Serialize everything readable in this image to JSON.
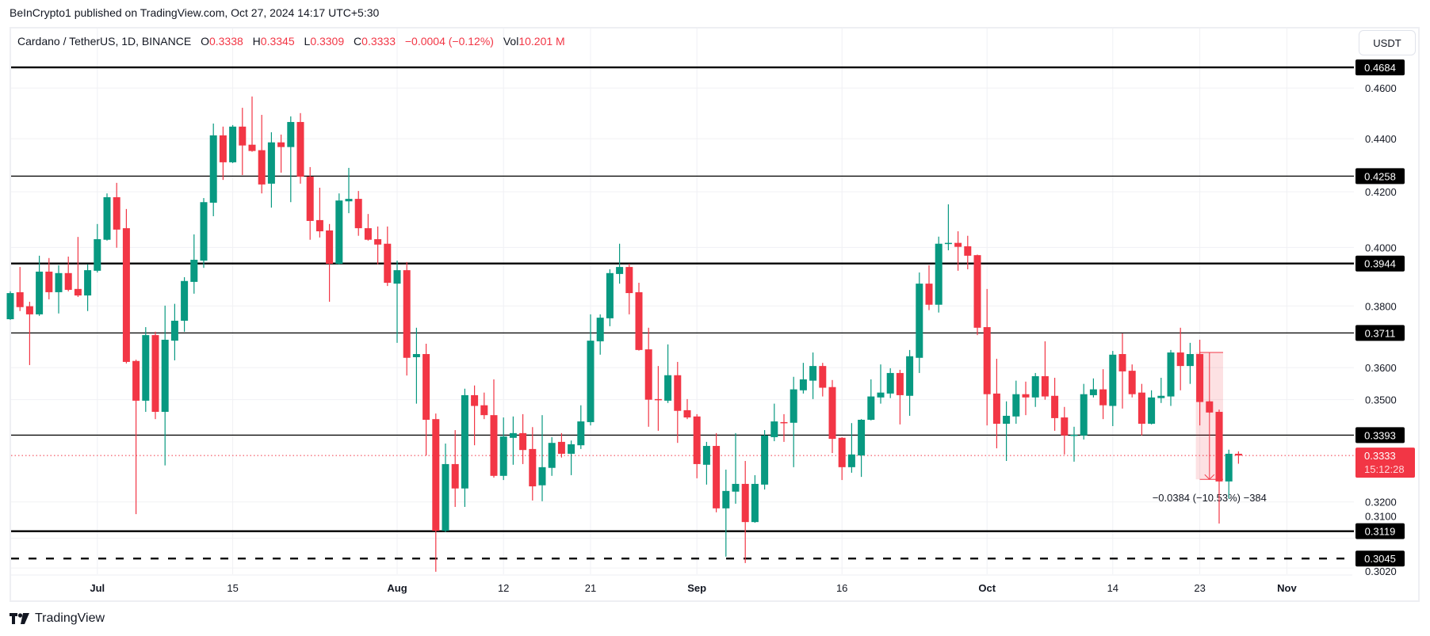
{
  "header": {
    "published": "BeInCrypto1 published on TradingView.com, Oct 27, 2024 14:17 UTC+5:30"
  },
  "legend": {
    "symbol": "Cardano / TetherUS, 1D, BINANCE",
    "o_label": "O",
    "o": "0.3338",
    "h_label": "H",
    "h": "0.3345",
    "l_label": "L",
    "l": "0.3309",
    "c_label": "C",
    "c": "0.3333",
    "change": "−0.0004 (−0.12%)",
    "vol_label": "Vol",
    "vol": "10.201 M"
  },
  "currency_button": "USDT",
  "footer": {
    "brand": "TradingView",
    "logo_icon": "tradingview-logo-icon"
  },
  "colors": {
    "up": "#089981",
    "down": "#f23645",
    "level": "#000000",
    "last_price": "#f23645"
  },
  "chart_data": {
    "type": "candlestick",
    "scale": "log",
    "grid": true,
    "ylim": [
      0.2985,
      0.4755
    ],
    "xlim": [
      "2024-06-22",
      "2024-11-04"
    ],
    "y_ticks": [
      "0.4600",
      "0.4400",
      "0.4200",
      "0.4000",
      "0.3800",
      "0.3600",
      "0.3500",
      "0.3200",
      "0.3100",
      "0.3020"
    ],
    "x_ticks": [
      {
        "date": "2024-07-01",
        "label": "Jul",
        "major": true
      },
      {
        "date": "2024-07-15",
        "label": "15",
        "major": false
      },
      {
        "date": "2024-08-01",
        "label": "Aug",
        "major": true
      },
      {
        "date": "2024-08-12",
        "label": "12",
        "major": false
      },
      {
        "date": "2024-08-21",
        "label": "21",
        "major": false
      },
      {
        "date": "2024-09-01",
        "label": "Sep",
        "major": true
      },
      {
        "date": "2024-09-16",
        "label": "16",
        "major": false
      },
      {
        "date": "2024-10-01",
        "label": "Oct",
        "major": true
      },
      {
        "date": "2024-10-14",
        "label": "14",
        "major": false
      },
      {
        "date": "2024-10-23",
        "label": "23",
        "major": false
      },
      {
        "date": "2024-11-01",
        "label": "Nov",
        "major": true
      }
    ],
    "levels": [
      {
        "price": 0.4684,
        "label": "0.4684",
        "style": "solid-thick"
      },
      {
        "price": 0.4258,
        "label": "0.4258",
        "style": "solid"
      },
      {
        "price": 0.3944,
        "label": "0.3944",
        "style": "solid-thick"
      },
      {
        "price": 0.3711,
        "label": "0.3711",
        "style": "solid"
      },
      {
        "price": 0.3393,
        "label": "0.3393",
        "style": "solid"
      },
      {
        "price": 0.3119,
        "label": "0.3119",
        "style": "solid-thick"
      },
      {
        "price": 0.3045,
        "label": "0.3045",
        "style": "dashed"
      }
    ],
    "last_price": {
      "price": 0.3333,
      "label": "0.3333",
      "countdown": "15:12:28"
    },
    "measurement": {
      "from_date": "2024-10-23",
      "to_date": "2024-10-25",
      "from_price": 0.3648,
      "to_price": 0.3264,
      "label": "−0.0384 (−10.53%) −384"
    },
    "columns": [
      "date",
      "open",
      "high",
      "low",
      "close"
    ],
    "candles": [
      [
        "2024-06-22",
        0.3756,
        0.3849,
        0.3754,
        0.3843
      ],
      [
        "2024-06-23",
        0.3846,
        0.3932,
        0.3783,
        0.3796
      ],
      [
        "2024-06-24",
        0.3799,
        0.3814,
        0.3608,
        0.3772
      ],
      [
        "2024-06-25",
        0.3772,
        0.3971,
        0.3767,
        0.3916
      ],
      [
        "2024-06-26",
        0.3916,
        0.3963,
        0.3822,
        0.3846
      ],
      [
        "2024-06-27",
        0.3846,
        0.3938,
        0.3775,
        0.3911
      ],
      [
        "2024-06-28",
        0.3911,
        0.3968,
        0.3849,
        0.3854
      ],
      [
        "2024-06-29",
        0.3857,
        0.4037,
        0.383,
        0.3835
      ],
      [
        "2024-06-30",
        0.3835,
        0.3941,
        0.3783,
        0.3921
      ],
      [
        "2024-07-01",
        0.3919,
        0.4083,
        0.3913,
        0.4029
      ],
      [
        "2024-07-02",
        0.4027,
        0.4194,
        0.4024,
        0.418
      ],
      [
        "2024-07-03",
        0.418,
        0.4233,
        0.3999,
        0.4063
      ],
      [
        "2024-07-04",
        0.4068,
        0.4137,
        0.3613,
        0.3618
      ],
      [
        "2024-07-05",
        0.3621,
        0.3625,
        0.3166,
        0.3497
      ],
      [
        "2024-07-06",
        0.3497,
        0.373,
        0.3463,
        0.3704
      ],
      [
        "2024-07-07",
        0.3704,
        0.3715,
        0.3441,
        0.3463
      ],
      [
        "2024-07-08",
        0.3463,
        0.3801,
        0.3304,
        0.3689
      ],
      [
        "2024-07-09",
        0.3686,
        0.3807,
        0.3623,
        0.3751
      ],
      [
        "2024-07-10",
        0.3751,
        0.3897,
        0.3715,
        0.3884
      ],
      [
        "2024-07-11",
        0.3881,
        0.4046,
        0.3841,
        0.3957
      ],
      [
        "2024-07-12",
        0.3954,
        0.4177,
        0.3929,
        0.4162
      ],
      [
        "2024-07-13",
        0.416,
        0.4459,
        0.4111,
        0.4413
      ],
      [
        "2024-07-14",
        0.4413,
        0.4447,
        0.4244,
        0.431
      ],
      [
        "2024-07-15",
        0.431,
        0.4453,
        0.4307,
        0.4447
      ],
      [
        "2024-07-16",
        0.4447,
        0.4521,
        0.4262,
        0.4374
      ],
      [
        "2024-07-17",
        0.4377,
        0.4566,
        0.435,
        0.4353
      ],
      [
        "2024-07-18",
        0.4356,
        0.4493,
        0.4194,
        0.4227
      ],
      [
        "2024-07-19",
        0.423,
        0.4425,
        0.4142,
        0.4386
      ],
      [
        "2024-07-20",
        0.4386,
        0.4416,
        0.4271,
        0.4368
      ],
      [
        "2024-07-21",
        0.4368,
        0.4487,
        0.4162,
        0.4465
      ],
      [
        "2024-07-22",
        0.4465,
        0.45,
        0.423,
        0.4256
      ],
      [
        "2024-07-23",
        0.4256,
        0.4292,
        0.4027,
        0.4094
      ],
      [
        "2024-07-24",
        0.4097,
        0.4215,
        0.4035,
        0.4057
      ],
      [
        "2024-07-25",
        0.406,
        0.4083,
        0.3814,
        0.3943
      ],
      [
        "2024-07-26",
        0.3943,
        0.4194,
        0.394,
        0.4168
      ],
      [
        "2024-07-27",
        0.4165,
        0.4289,
        0.4122,
        0.4174
      ],
      [
        "2024-07-28",
        0.4174,
        0.4203,
        0.4041,
        0.4068
      ],
      [
        "2024-07-29",
        0.4068,
        0.4119,
        0.4024,
        0.4027
      ],
      [
        "2024-07-30",
        0.4029,
        0.4074,
        0.3941,
        0.401
      ],
      [
        "2024-07-31",
        0.4013,
        0.4074,
        0.3867,
        0.3878
      ],
      [
        "2024-08-01",
        0.3875,
        0.3954,
        0.3679,
        0.3921
      ],
      [
        "2024-08-02",
        0.3921,
        0.3949,
        0.3575,
        0.3631
      ],
      [
        "2024-08-03",
        0.3633,
        0.3728,
        0.3488,
        0.3643
      ],
      [
        "2024-08-04",
        0.3643,
        0.3676,
        0.3333,
        0.3439
      ],
      [
        "2024-08-05",
        0.3441,
        0.3458,
        0.301,
        0.312
      ],
      [
        "2024-08-06",
        0.312,
        0.3368,
        0.3116,
        0.3308
      ],
      [
        "2024-08-07",
        0.3308,
        0.3408,
        0.3186,
        0.3238
      ],
      [
        "2024-08-08",
        0.3238,
        0.3534,
        0.3186,
        0.3514
      ],
      [
        "2024-08-09",
        0.3514,
        0.3544,
        0.3363,
        0.3481
      ],
      [
        "2024-08-10",
        0.3483,
        0.3522,
        0.3441,
        0.3453
      ],
      [
        "2024-08-11",
        0.3453,
        0.3563,
        0.3269,
        0.3274
      ],
      [
        "2024-08-12",
        0.3274,
        0.3446,
        0.3262,
        0.3389
      ],
      [
        "2024-08-13",
        0.3385,
        0.3449,
        0.3306,
        0.3399
      ],
      [
        "2024-08-14",
        0.3399,
        0.3456,
        0.3308,
        0.3349
      ],
      [
        "2024-08-15",
        0.3352,
        0.3417,
        0.3204,
        0.3244
      ],
      [
        "2024-08-16",
        0.3247,
        0.3453,
        0.3202,
        0.3299
      ],
      [
        "2024-08-17",
        0.3297,
        0.3387,
        0.3274,
        0.337
      ],
      [
        "2024-08-18",
        0.3373,
        0.3399,
        0.3327,
        0.3338
      ],
      [
        "2024-08-19",
        0.3338,
        0.3377,
        0.3276,
        0.3366
      ],
      [
        "2024-08-20",
        0.3363,
        0.3483,
        0.3352,
        0.3434
      ],
      [
        "2024-08-21",
        0.3432,
        0.3772,
        0.3422,
        0.3686
      ],
      [
        "2024-08-22",
        0.3684,
        0.3772,
        0.3641,
        0.3761
      ],
      [
        "2024-08-23",
        0.3759,
        0.3924,
        0.3733,
        0.3911
      ],
      [
        "2024-08-24",
        0.3908,
        0.4013,
        0.3875,
        0.3932
      ],
      [
        "2024-08-25",
        0.3932,
        0.3943,
        0.3772,
        0.3843
      ],
      [
        "2024-08-26",
        0.3846,
        0.3878,
        0.3654,
        0.3656
      ],
      [
        "2024-08-27",
        0.3658,
        0.3728,
        0.3418,
        0.35
      ],
      [
        "2024-08-28",
        0.3502,
        0.3605,
        0.3406,
        0.35
      ],
      [
        "2024-08-29",
        0.3497,
        0.3674,
        0.349,
        0.3576
      ],
      [
        "2024-08-30",
        0.3576,
        0.3618,
        0.337,
        0.3466
      ],
      [
        "2024-08-31",
        0.3468,
        0.3502,
        0.3441,
        0.3446
      ],
      [
        "2024-09-01",
        0.3449,
        0.3456,
        0.3267,
        0.3308
      ],
      [
        "2024-09-02",
        0.3306,
        0.3373,
        0.3249,
        0.3361
      ],
      [
        "2024-09-03",
        0.3361,
        0.3399,
        0.3171,
        0.3182
      ],
      [
        "2024-09-04",
        0.3182,
        0.3292,
        0.305,
        0.3231
      ],
      [
        "2024-09-05",
        0.3229,
        0.3399,
        0.3195,
        0.3251
      ],
      [
        "2024-09-06",
        0.3251,
        0.3317,
        0.3033,
        0.3144
      ],
      [
        "2024-09-07",
        0.3144,
        0.3276,
        0.3142,
        0.3251
      ],
      [
        "2024-09-08",
        0.3249,
        0.3408,
        0.3235,
        0.3392
      ],
      [
        "2024-09-09",
        0.3387,
        0.3488,
        0.3375,
        0.3434
      ],
      [
        "2024-09-10",
        0.3432,
        0.3456,
        0.3373,
        0.343
      ],
      [
        "2024-09-11",
        0.343,
        0.3571,
        0.3299,
        0.3532
      ],
      [
        "2024-09-12",
        0.3529,
        0.3615,
        0.3519,
        0.3563
      ],
      [
        "2024-09-13",
        0.3559,
        0.3648,
        0.3502,
        0.3605
      ],
      [
        "2024-09-14",
        0.3605,
        0.3615,
        0.351,
        0.3537
      ],
      [
        "2024-09-15",
        0.3539,
        0.3561,
        0.334,
        0.3382
      ],
      [
        "2024-09-16",
        0.3385,
        0.3387,
        0.3262,
        0.3299
      ],
      [
        "2024-09-17",
        0.3299,
        0.3429,
        0.3283,
        0.3336
      ],
      [
        "2024-09-18",
        0.3333,
        0.3441,
        0.3271,
        0.3439
      ],
      [
        "2024-09-19",
        0.3439,
        0.3563,
        0.3437,
        0.351
      ],
      [
        "2024-09-20",
        0.3507,
        0.361,
        0.3488,
        0.3522
      ],
      [
        "2024-09-21",
        0.3519,
        0.3598,
        0.3505,
        0.3583
      ],
      [
        "2024-09-22",
        0.3583,
        0.3593,
        0.3425,
        0.3514
      ],
      [
        "2024-09-23",
        0.3512,
        0.3656,
        0.3451,
        0.3636
      ],
      [
        "2024-09-24",
        0.3631,
        0.3913,
        0.3583,
        0.3875
      ],
      [
        "2024-09-25",
        0.3875,
        0.3938,
        0.3786,
        0.3804
      ],
      [
        "2024-09-26",
        0.3804,
        0.4038,
        0.3778,
        0.4013
      ],
      [
        "2024-09-27",
        0.4013,
        0.4154,
        0.399,
        0.4016
      ],
      [
        "2024-09-28",
        0.4016,
        0.4057,
        0.3919,
        0.4002
      ],
      [
        "2024-09-29",
        0.4004,
        0.4041,
        0.3924,
        0.3971
      ],
      [
        "2024-09-30",
        0.3973,
        0.3975,
        0.3704,
        0.3728
      ],
      [
        "2024-10-01",
        0.373,
        0.3857,
        0.3422,
        0.3517
      ],
      [
        "2024-10-02",
        0.3519,
        0.3628,
        0.3354,
        0.3427
      ],
      [
        "2024-10-03",
        0.3427,
        0.3495,
        0.3317,
        0.3451
      ],
      [
        "2024-10-04",
        0.3449,
        0.3559,
        0.3427,
        0.3517
      ],
      [
        "2024-10-05",
        0.3517,
        0.3556,
        0.3453,
        0.3507
      ],
      [
        "2024-10-06",
        0.3507,
        0.3583,
        0.3478,
        0.3573
      ],
      [
        "2024-10-07",
        0.3573,
        0.3684,
        0.35,
        0.351
      ],
      [
        "2024-10-08",
        0.3512,
        0.3568,
        0.3406,
        0.3444
      ],
      [
        "2024-10-09",
        0.3446,
        0.3478,
        0.3336,
        0.3392
      ],
      [
        "2024-10-10",
        0.3392,
        0.3418,
        0.3315,
        0.3394
      ],
      [
        "2024-10-11",
        0.3392,
        0.3549,
        0.338,
        0.3517
      ],
      [
        "2024-10-12",
        0.3514,
        0.3566,
        0.3507,
        0.3532
      ],
      [
        "2024-10-13",
        0.3532,
        0.3595,
        0.3441,
        0.3483
      ],
      [
        "2024-10-14",
        0.3481,
        0.3653,
        0.342,
        0.3641
      ],
      [
        "2024-10-15",
        0.3643,
        0.3709,
        0.3473,
        0.3588
      ],
      [
        "2024-10-16",
        0.359,
        0.361,
        0.3507,
        0.3517
      ],
      [
        "2024-10-17",
        0.3522,
        0.3549,
        0.3392,
        0.3427
      ],
      [
        "2024-10-18",
        0.3427,
        0.3529,
        0.3425,
        0.3507
      ],
      [
        "2024-10-19",
        0.3505,
        0.3568,
        0.349,
        0.3512
      ],
      [
        "2024-10-20",
        0.351,
        0.3656,
        0.3481,
        0.3648
      ],
      [
        "2024-10-21",
        0.3648,
        0.3728,
        0.3529,
        0.3605
      ],
      [
        "2024-10-22",
        0.3605,
        0.3679,
        0.3549,
        0.3643
      ],
      [
        "2024-10-23",
        0.3643,
        0.3689,
        0.3422,
        0.3493
      ],
      [
        "2024-10-24",
        0.3495,
        0.3497,
        0.3459,
        0.3461
      ],
      [
        "2024-10-25",
        0.3463,
        0.347,
        0.314,
        0.3258
      ],
      [
        "2024-10-26",
        0.3258,
        0.335,
        0.3209,
        0.3338
      ],
      [
        "2024-10-27",
        0.3338,
        0.3345,
        0.3309,
        0.3333
      ]
    ]
  }
}
